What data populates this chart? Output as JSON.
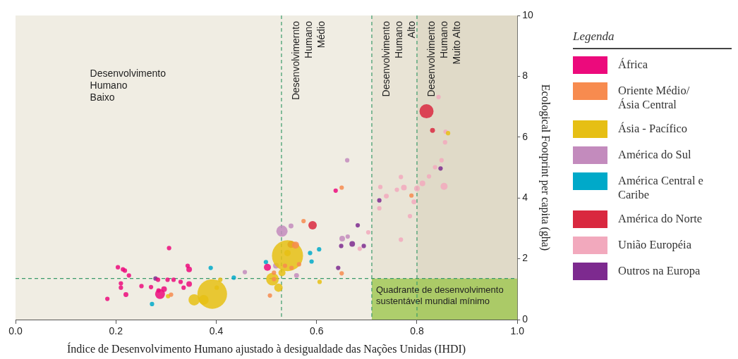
{
  "chart_data": {
    "type": "bubble",
    "xlabel": "Índice de Desenvolvimento Humano ajustado à desigualdade das Nações Unidas (IHDI)",
    "ylabel": "Ecological Footprint per capita (gha)",
    "legend_title": "Legenda",
    "legend": "right",
    "grid": false,
    "xlim": [
      0,
      1
    ],
    "xticks": [
      {
        "value": 0,
        "label": "0.0"
      },
      {
        "value": 0.2,
        "label": "0.2"
      },
      {
        "value": 0.4,
        "label": "0.4"
      },
      {
        "value": 0.6,
        "label": "0.6"
      },
      {
        "value": 0.8,
        "label": "0.8"
      },
      {
        "value": 1,
        "label": "1.0"
      }
    ],
    "ylim": [
      0,
      10
    ],
    "yticks": [
      0,
      2,
      4,
      6,
      8,
      10
    ],
    "bands": [
      {
        "axis": "x",
        "from": 0,
        "to": 0.53,
        "label": "Desenvolvimento\nHumano\nBaixo",
        "color": "#f0ede3"
      },
      {
        "axis": "x",
        "from": 0.53,
        "to": 0.71,
        "label": "Desenvolvimernto\nHumano\nMédio",
        "color": "#f0ede3"
      },
      {
        "axis": "x",
        "from": 0.71,
        "to": 0.8,
        "label": "Desenvolvimento\nHumano\nAlto",
        "color": "#e9e4d6"
      },
      {
        "axis": "x",
        "from": 0.8,
        "to": 1,
        "label": "Desenvolvimento\nHumano\nMuito Alto",
        "color": "#e0dac8"
      },
      {
        "axis": "y",
        "from": 0,
        "to": 1.35,
        "label": "Quadrante de desenvolvimento\nsustentável mundial mínimo",
        "color": "#8fc232"
      }
    ],
    "ref_lines": [
      {
        "axis": "x",
        "value": 0.53,
        "color": "#3a9a6a",
        "line_style": "dashed"
      },
      {
        "axis": "x",
        "value": 0.71,
        "color": "#3a9a6a",
        "line_style": "dashed"
      },
      {
        "axis": "x",
        "value": 0.8,
        "color": "#3a9a6a",
        "line_style": "dashed"
      },
      {
        "axis": "y",
        "value": 1.35,
        "color": "#3a9a6a",
        "line_style": "dashed"
      }
    ],
    "series": [
      {
        "name": "África",
        "color": "#ec0a7c",
        "x": [
          0.306,
          0.204,
          0.218,
          0.214,
          0.226,
          0.284,
          0.303,
          0.315,
          0.329,
          0.343,
          0.346,
          0.346,
          0.335,
          0.21,
          0.21,
          0.22,
          0.183,
          0.27,
          0.288,
          0.296,
          0.285,
          0.251,
          0.502,
          0.638
        ],
        "values": [
          2.35,
          1.72,
          1.61,
          1.65,
          1.45,
          1.31,
          1.31,
          1.31,
          1.24,
          1.77,
          1.65,
          1.17,
          1.05,
          1.19,
          1.05,
          0.82,
          0.68,
          1.07,
          0.84,
          1.0,
          0.96,
          1.1,
          1.72,
          4.24
        ],
        "sizes": [
          0.02,
          0.02,
          0.02,
          0.02,
          0.02,
          0.02,
          0.02,
          0.02,
          0.02,
          0.02,
          0.033,
          0.033,
          0.02,
          0.02,
          0.02,
          0.025,
          0.02,
          0.02,
          0.101,
          0.033,
          0.02,
          0.02,
          0.052,
          0.02
        ]
      },
      {
        "name": "Oriente Médio/ Ásia Central",
        "color": "#f78b4f",
        "x": [
          0.31,
          0.558,
          0.55,
          0.537,
          0.565,
          0.515,
          0.515,
          0.507,
          0.574,
          0.65,
          0.65,
          0.789
        ],
        "values": [
          0.82,
          2.45,
          1.7,
          1.77,
          1.82,
          1.54,
          1.33,
          0.79,
          3.24,
          1.52,
          4.34,
          4.08
        ],
        "sizes": [
          0.02,
          0.052,
          0.02,
          0.02,
          0.02,
          0.02,
          0.02,
          0.02,
          0.02,
          0.02,
          0.02,
          0.02
        ]
      },
      {
        "name": "Ásia - Pacífico",
        "color": "#e6bf14",
        "x": [
          0.304,
          0.392,
          0.356,
          0.375,
          0.401,
          0.408,
          0.542,
          0.542,
          0.531,
          0.512,
          0.524,
          0.606,
          0.862
        ],
        "values": [
          0.77,
          0.84,
          0.65,
          0.65,
          1.05,
          1.31,
          2.1,
          2.19,
          1.54,
          1.33,
          1.05,
          1.24,
          6.13
        ],
        "sizes": [
          0.02,
          0.911,
          0.132,
          0.101,
          0.02,
          0.02,
          1,
          0.042,
          0.052,
          0.167,
          0.074,
          0.02,
          0.02
        ]
      },
      {
        "name": "América do Sul",
        "color": "#c38bbd",
        "x": [
          0.531,
          0.549,
          0.519,
          0.56,
          0.457,
          0.651,
          0.662,
          0.661
        ],
        "values": [
          2.91,
          3.08,
          1.77,
          1.45,
          1.56,
          2.66,
          2.73,
          5.24
        ],
        "sizes": [
          0.132,
          0.025,
          0.033,
          0.025,
          0.02,
          0.033,
          0.02,
          0.02
        ]
      },
      {
        "name": "América Central e Caribe",
        "color": "#00a9c9",
        "x": [
          0.389,
          0.272,
          0.435,
          0.499,
          0.587,
          0.605,
          0.59
        ],
        "values": [
          1.7,
          0.51,
          1.38,
          1.89,
          2.19,
          2.31,
          1.91
        ],
        "sizes": [
          0.02,
          0.02,
          0.02,
          0.02,
          0.02,
          0.02,
          0.02
        ]
      },
      {
        "name": "América do Norte",
        "color": "#d9283f",
        "x": [
          0.592,
          0.549,
          0.819,
          0.831
        ],
        "values": [
          3.1,
          2.47,
          6.85,
          6.22
        ],
        "sizes": [
          0.074,
          0.052,
          0.207,
          0.025
        ]
      },
      {
        "name": "União Européia",
        "color": "#f2a9bd",
        "x": [
          0.686,
          0.703,
          0.857,
          0.856,
          0.843,
          0.849,
          0.836,
          0.824,
          0.811,
          0.8,
          0.854,
          0.774,
          0.76,
          0.739,
          0.727,
          0.794,
          0.786,
          0.768,
          0.768,
          0.725
        ],
        "values": [
          2.33,
          2.87,
          6.18,
          5.83,
          7.32,
          5.24,
          5.01,
          4.71,
          4.48,
          4.31,
          4.38,
          4.34,
          4.27,
          4.06,
          4.36,
          3.87,
          3.4,
          2.63,
          4.69,
          3.66
        ],
        "sizes": [
          0.02,
          0.02,
          0.02,
          0.02,
          0.02,
          0.02,
          0.02,
          0.02,
          0.033,
          0.033,
          0.052,
          0.033,
          0.02,
          0.025,
          0.02,
          0.025,
          0.02,
          0.02,
          0.02,
          0.02
        ]
      },
      {
        "name": "Outros na Europa",
        "color": "#7d2a8f",
        "x": [
          0.279,
          0.671,
          0.682,
          0.694,
          0.649,
          0.643,
          0.847,
          0.725
        ],
        "values": [
          1.35,
          2.49,
          3.1,
          2.42,
          2.42,
          1.7,
          4.97,
          3.92
        ],
        "sizes": [
          0.02,
          0.033,
          0.02,
          0.02,
          0.02,
          0.02,
          0.02,
          0.02
        ]
      }
    ]
  }
}
